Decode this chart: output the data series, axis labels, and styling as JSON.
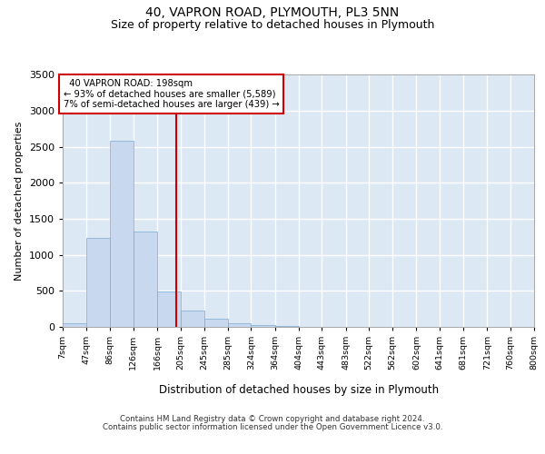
{
  "title": "40, VAPRON ROAD, PLYMOUTH, PL3 5NN",
  "subtitle": "Size of property relative to detached houses in Plymouth",
  "xlabel": "Distribution of detached houses by size in Plymouth",
  "ylabel": "Number of detached properties",
  "footer_line1": "Contains HM Land Registry data © Crown copyright and database right 2024.",
  "footer_line2": "Contains public sector information licensed under the Open Government Licence v3.0.",
  "bin_edges": [
    7,
    47,
    86,
    126,
    166,
    205,
    245,
    285,
    324,
    364,
    404,
    443,
    483,
    522,
    562,
    602,
    641,
    681,
    721,
    760,
    800
  ],
  "bin_labels": [
    "7sqm",
    "47sqm",
    "86sqm",
    "126sqm",
    "166sqm",
    "205sqm",
    "245sqm",
    "285sqm",
    "324sqm",
    "364sqm",
    "404sqm",
    "443sqm",
    "483sqm",
    "522sqm",
    "562sqm",
    "602sqm",
    "641sqm",
    "681sqm",
    "721sqm",
    "760sqm",
    "800sqm"
  ],
  "bar_heights": [
    50,
    1230,
    2580,
    1330,
    490,
    230,
    115,
    50,
    30,
    10,
    0,
    0,
    0,
    0,
    0,
    0,
    0,
    0,
    0,
    0
  ],
  "bar_color": "#c8d8ee",
  "bar_edge_color": "#7aaad0",
  "property_size": 198,
  "vline_color": "#cc0000",
  "annotation_text": "  40 VAPRON ROAD: 198sqm\n← 93% of detached houses are smaller (5,589)\n7% of semi-detached houses are larger (439) →",
  "annotation_box_color": "#cc0000",
  "ylim": [
    0,
    3500
  ],
  "yticks": [
    0,
    500,
    1000,
    1500,
    2000,
    2500,
    3000,
    3500
  ],
  "plot_background": "#dde8f5",
  "grid_color": "#ffffff",
  "fig_background": "#ffffff",
  "title_fontsize": 10,
  "subtitle_fontsize": 9
}
